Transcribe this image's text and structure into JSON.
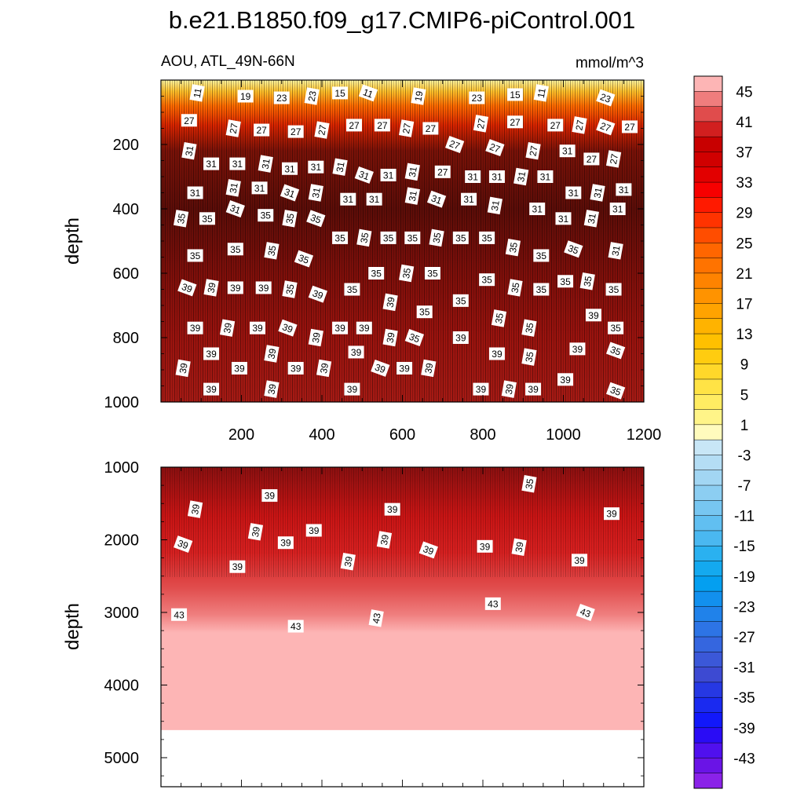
{
  "chart_data": {
    "type": "heatmap",
    "title": "b.e21.B1850.f09_g17.CMIP6-piControl.001",
    "variable": "AOU, ATL_49N-66N",
    "units": "mmol/m^3",
    "ylabel": "depth",
    "colormap": "yellow-orange-red for positive AOU, blue-purple for negative AOU",
    "panels": [
      {
        "name": "upper",
        "ylim": [
          0,
          1000
        ],
        "xlim": [
          0,
          1200
        ],
        "y_ticks": [
          200,
          400,
          600,
          800,
          1000
        ],
        "x_ticks": [
          200,
          400,
          600,
          800,
          1000,
          1200
        ],
        "contour_labels": [
          {
            "v": "11",
            "x": 90,
            "y": 40
          },
          {
            "v": "19",
            "x": 210,
            "y": 50
          },
          {
            "v": "23",
            "x": 300,
            "y": 55
          },
          {
            "v": "23",
            "x": 375,
            "y": 50
          },
          {
            "v": "15",
            "x": 445,
            "y": 40
          },
          {
            "v": "11",
            "x": 515,
            "y": 40
          },
          {
            "v": "19",
            "x": 640,
            "y": 50
          },
          {
            "v": "23",
            "x": 785,
            "y": 55
          },
          {
            "v": "15",
            "x": 880,
            "y": 45
          },
          {
            "v": "11",
            "x": 945,
            "y": 40
          },
          {
            "v": "23",
            "x": 1105,
            "y": 55
          },
          {
            "v": "27",
            "x": 70,
            "y": 125
          },
          {
            "v": "27",
            "x": 180,
            "y": 150
          },
          {
            "v": "27",
            "x": 250,
            "y": 155
          },
          {
            "v": "27",
            "x": 335,
            "y": 160
          },
          {
            "v": "27",
            "x": 400,
            "y": 155
          },
          {
            "v": "27",
            "x": 480,
            "y": 140
          },
          {
            "v": "27",
            "x": 550,
            "y": 140
          },
          {
            "v": "27",
            "x": 610,
            "y": 150
          },
          {
            "v": "27",
            "x": 670,
            "y": 150
          },
          {
            "v": "27",
            "x": 730,
            "y": 200
          },
          {
            "v": "27",
            "x": 795,
            "y": 135
          },
          {
            "v": "27",
            "x": 880,
            "y": 130
          },
          {
            "v": "27",
            "x": 980,
            "y": 140
          },
          {
            "v": "27",
            "x": 1040,
            "y": 140
          },
          {
            "v": "27",
            "x": 1105,
            "y": 145
          },
          {
            "v": "27",
            "x": 1165,
            "y": 145
          },
          {
            "v": "31",
            "x": 70,
            "y": 220
          },
          {
            "v": "31",
            "x": 125,
            "y": 260
          },
          {
            "v": "31",
            "x": 190,
            "y": 260
          },
          {
            "v": "31",
            "x": 260,
            "y": 260
          },
          {
            "v": "31",
            "x": 320,
            "y": 275
          },
          {
            "v": "31",
            "x": 385,
            "y": 270
          },
          {
            "v": "31",
            "x": 445,
            "y": 270
          },
          {
            "v": "27",
            "x": 700,
            "y": 285
          },
          {
            "v": "27",
            "x": 830,
            "y": 210
          },
          {
            "v": "27",
            "x": 925,
            "y": 220
          },
          {
            "v": "31",
            "x": 1010,
            "y": 220
          },
          {
            "v": "27",
            "x": 1070,
            "y": 245
          },
          {
            "v": "27",
            "x": 1125,
            "y": 245
          },
          {
            "v": "31",
            "x": 505,
            "y": 295
          },
          {
            "v": "31",
            "x": 565,
            "y": 295
          },
          {
            "v": "31",
            "x": 625,
            "y": 285
          },
          {
            "v": "31",
            "x": 775,
            "y": 300
          },
          {
            "v": "31",
            "x": 835,
            "y": 300
          },
          {
            "v": "31",
            "x": 895,
            "y": 300
          },
          {
            "v": "31",
            "x": 955,
            "y": 300
          },
          {
            "v": "31",
            "x": 85,
            "y": 350
          },
          {
            "v": "31",
            "x": 180,
            "y": 335
          },
          {
            "v": "31",
            "x": 245,
            "y": 335
          },
          {
            "v": "31",
            "x": 320,
            "y": 350
          },
          {
            "v": "31",
            "x": 385,
            "y": 350
          },
          {
            "v": "31",
            "x": 465,
            "y": 370
          },
          {
            "v": "31",
            "x": 530,
            "y": 370
          },
          {
            "v": "31",
            "x": 625,
            "y": 360
          },
          {
            "v": "31",
            "x": 685,
            "y": 370
          },
          {
            "v": "31",
            "x": 765,
            "y": 370
          },
          {
            "v": "31",
            "x": 830,
            "y": 390
          },
          {
            "v": "31",
            "x": 935,
            "y": 400
          },
          {
            "v": "31",
            "x": 1025,
            "y": 350
          },
          {
            "v": "31",
            "x": 1085,
            "y": 350
          },
          {
            "v": "31",
            "x": 1150,
            "y": 340
          },
          {
            "v": "31",
            "x": 1000,
            "y": 430
          },
          {
            "v": "31",
            "x": 1070,
            "y": 430
          },
          {
            "v": "31",
            "x": 1135,
            "y": 400
          },
          {
            "v": "31",
            "x": 185,
            "y": 400
          },
          {
            "v": "35",
            "x": 50,
            "y": 430
          },
          {
            "v": "35",
            "x": 115,
            "y": 430
          },
          {
            "v": "35",
            "x": 260,
            "y": 420
          },
          {
            "v": "35",
            "x": 320,
            "y": 430
          },
          {
            "v": "35",
            "x": 385,
            "y": 430
          },
          {
            "v": "35",
            "x": 445,
            "y": 490
          },
          {
            "v": "35",
            "x": 505,
            "y": 490
          },
          {
            "v": "35",
            "x": 565,
            "y": 490
          },
          {
            "v": "35",
            "x": 625,
            "y": 490
          },
          {
            "v": "35",
            "x": 685,
            "y": 490
          },
          {
            "v": "35",
            "x": 745,
            "y": 490
          },
          {
            "v": "35",
            "x": 810,
            "y": 490
          },
          {
            "v": "35",
            "x": 875,
            "y": 520
          },
          {
            "v": "35",
            "x": 945,
            "y": 545
          },
          {
            "v": "35",
            "x": 1025,
            "y": 525
          },
          {
            "v": "31",
            "x": 1130,
            "y": 530
          },
          {
            "v": "35",
            "x": 85,
            "y": 545
          },
          {
            "v": "35",
            "x": 185,
            "y": 525
          },
          {
            "v": "35",
            "x": 275,
            "y": 530
          },
          {
            "v": "35",
            "x": 355,
            "y": 555
          },
          {
            "v": "35",
            "x": 535,
            "y": 600
          },
          {
            "v": "35",
            "x": 610,
            "y": 600
          },
          {
            "v": "35",
            "x": 675,
            "y": 600
          },
          {
            "v": "35",
            "x": 810,
            "y": 620
          },
          {
            "v": "35",
            "x": 880,
            "y": 645
          },
          {
            "v": "35",
            "x": 945,
            "y": 650
          },
          {
            "v": "35",
            "x": 1005,
            "y": 625
          },
          {
            "v": "35",
            "x": 1060,
            "y": 625
          },
          {
            "v": "35",
            "x": 1125,
            "y": 650
          },
          {
            "v": "39",
            "x": 65,
            "y": 645
          },
          {
            "v": "39",
            "x": 125,
            "y": 645
          },
          {
            "v": "39",
            "x": 185,
            "y": 645
          },
          {
            "v": "39",
            "x": 255,
            "y": 645
          },
          {
            "v": "35",
            "x": 320,
            "y": 650
          },
          {
            "v": "39",
            "x": 390,
            "y": 665
          },
          {
            "v": "35",
            "x": 475,
            "y": 650
          },
          {
            "v": "39",
            "x": 570,
            "y": 690
          },
          {
            "v": "35",
            "x": 655,
            "y": 720
          },
          {
            "v": "35",
            "x": 745,
            "y": 685
          },
          {
            "v": "35",
            "x": 840,
            "y": 740
          },
          {
            "v": "39",
            "x": 1075,
            "y": 730
          },
          {
            "v": "39",
            "x": 85,
            "y": 770
          },
          {
            "v": "39",
            "x": 165,
            "y": 770
          },
          {
            "v": "39",
            "x": 240,
            "y": 770
          },
          {
            "v": "39",
            "x": 315,
            "y": 770
          },
          {
            "v": "39",
            "x": 385,
            "y": 800
          },
          {
            "v": "39",
            "x": 445,
            "y": 770
          },
          {
            "v": "39",
            "x": 505,
            "y": 770
          },
          {
            "v": "39",
            "x": 570,
            "y": 800
          },
          {
            "v": "35",
            "x": 630,
            "y": 800
          },
          {
            "v": "39",
            "x": 745,
            "y": 800
          },
          {
            "v": "35",
            "x": 915,
            "y": 770
          },
          {
            "v": "35",
            "x": 1130,
            "y": 770
          },
          {
            "v": "39",
            "x": 125,
            "y": 850
          },
          {
            "v": "39",
            "x": 275,
            "y": 850
          },
          {
            "v": "39",
            "x": 485,
            "y": 845
          },
          {
            "v": "39",
            "x": 835,
            "y": 850
          },
          {
            "v": "35",
            "x": 915,
            "y": 860
          },
          {
            "v": "39",
            "x": 1035,
            "y": 835
          },
          {
            "v": "35",
            "x": 1130,
            "y": 840
          },
          {
            "v": "39",
            "x": 55,
            "y": 895
          },
          {
            "v": "39",
            "x": 195,
            "y": 895
          },
          {
            "v": "39",
            "x": 335,
            "y": 895
          },
          {
            "v": "39",
            "x": 405,
            "y": 895
          },
          {
            "v": "39",
            "x": 545,
            "y": 895
          },
          {
            "v": "39",
            "x": 605,
            "y": 895
          },
          {
            "v": "39",
            "x": 665,
            "y": 895
          },
          {
            "v": "39",
            "x": 1005,
            "y": 930
          },
          {
            "v": "39",
            "x": 125,
            "y": 960
          },
          {
            "v": "39",
            "x": 275,
            "y": 960
          },
          {
            "v": "39",
            "x": 475,
            "y": 960
          },
          {
            "v": "39",
            "x": 795,
            "y": 960
          },
          {
            "v": "39",
            "x": 865,
            "y": 960
          },
          {
            "v": "39",
            "x": 925,
            "y": 960
          },
          {
            "v": "35",
            "x": 1130,
            "y": 965
          }
        ]
      },
      {
        "name": "lower",
        "ylim": [
          1000,
          5400
        ],
        "xlim": [
          0,
          1200
        ],
        "y_ticks": [
          1000,
          2000,
          3000,
          4000,
          5000
        ],
        "x_ticks": [],
        "ocean_floor_depth": 4620,
        "contour_labels": [
          {
            "v": "39",
            "x": 85,
            "y": 1580
          },
          {
            "v": "39",
            "x": 270,
            "y": 1390
          },
          {
            "v": "39",
            "x": 575,
            "y": 1580
          },
          {
            "v": "35",
            "x": 915,
            "y": 1230
          },
          {
            "v": "39",
            "x": 1120,
            "y": 1640
          },
          {
            "v": "39",
            "x": 55,
            "y": 2060
          },
          {
            "v": "39",
            "x": 235,
            "y": 1890
          },
          {
            "v": "39",
            "x": 310,
            "y": 2040
          },
          {
            "v": "39",
            "x": 380,
            "y": 1870
          },
          {
            "v": "39",
            "x": 555,
            "y": 2000
          },
          {
            "v": "39",
            "x": 665,
            "y": 2140
          },
          {
            "v": "39",
            "x": 805,
            "y": 2090
          },
          {
            "v": "39",
            "x": 890,
            "y": 2100
          },
          {
            "v": "39",
            "x": 1040,
            "y": 2280
          },
          {
            "v": "39",
            "x": 190,
            "y": 2370
          },
          {
            "v": "39",
            "x": 465,
            "y": 2300
          },
          {
            "v": "43",
            "x": 45,
            "y": 3030
          },
          {
            "v": "43",
            "x": 335,
            "y": 3190
          },
          {
            "v": "43",
            "x": 535,
            "y": 3080
          },
          {
            "v": "43",
            "x": 825,
            "y": 2880
          },
          {
            "v": "43",
            "x": 1055,
            "y": 3000
          }
        ]
      }
    ],
    "colorbar": {
      "labels": [
        "45",
        "41",
        "37",
        "33",
        "29",
        "25",
        "21",
        "17",
        "13",
        "9",
        "5",
        "1",
        "-3",
        "-7",
        "-11",
        "-15",
        "-19",
        "-23",
        "-27",
        "-31",
        "-35",
        "-39",
        "-43"
      ],
      "colors": [
        "#fdb5b5",
        "#ef7d7d",
        "#e04c4c",
        "#d11f1f",
        "#c80000",
        "#d00000",
        "#e20000",
        "#f70000",
        "#ff1a00",
        "#ff3300",
        "#ff4d00",
        "#ff6600",
        "#ff7300",
        "#ff8300",
        "#ff9300",
        "#ffa300",
        "#ffb300",
        "#ffc000",
        "#ffcc10",
        "#ffd82a",
        "#ffe345",
        "#ffec62",
        "#fff488",
        "#fffbbd",
        "#c8e6f6",
        "#b4ddf4",
        "#a2d6f3",
        "#8ccef2",
        "#77c6f1",
        "#61bff1",
        "#4ab8f0",
        "#2ab1f0",
        "#14a9ef",
        "#049ff0",
        "#1290ee",
        "#2082ea",
        "#2d74e5",
        "#3566df",
        "#3b58d8",
        "#3d4ad2",
        "#2638e3",
        "#1a2af0",
        "#1218fa",
        "#2a0cf5",
        "#5010ee",
        "#6a14e6",
        "#8a22e8"
      ]
    }
  }
}
